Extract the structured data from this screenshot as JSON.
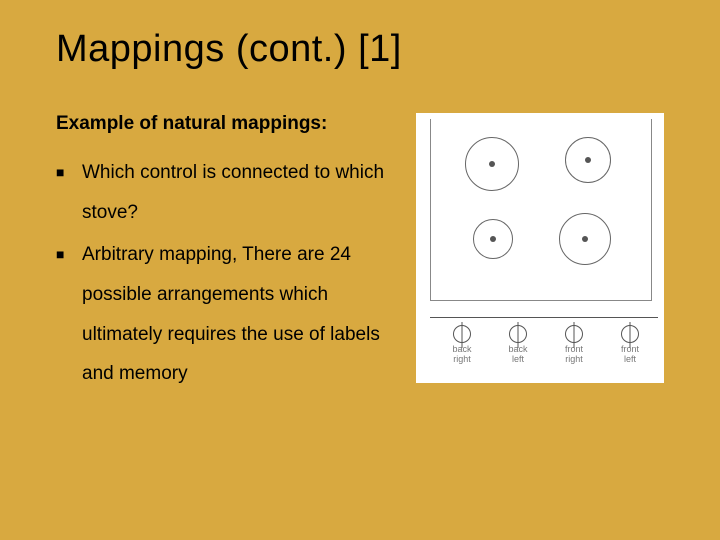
{
  "colors": {
    "background": "#d8a940",
    "text": "#000000",
    "figure_bg": "#ffffff",
    "stroke": "#666666",
    "label_muted": "#777777"
  },
  "typography": {
    "title_fontsize": 38,
    "subtitle_fontsize": 19,
    "body_fontsize": 19,
    "knob_label_fontsize": 9,
    "font_family": "Arial"
  },
  "title": "Mappings (cont.) [1]",
  "subtitle": "Example of natural mappings:",
  "bullets": [
    "Which control is connected to which stove?",
    "Arbitrary mapping, There are 24 possible arrangements which ultimately requires the use of labels and memory"
  ],
  "figure": {
    "type": "diagram",
    "description": "stove-top-with-four-burners-and-linear-knob-row",
    "burners": [
      {
        "pos": "top-left",
        "diameter": 54
      },
      {
        "pos": "top-right",
        "diameter": 46
      },
      {
        "pos": "bottom-left",
        "diameter": 40
      },
      {
        "pos": "bottom-right",
        "diameter": 52
      }
    ],
    "knobs": [
      {
        "label_line1": "back",
        "label_line2": "right"
      },
      {
        "label_line1": "back",
        "label_line2": "left"
      },
      {
        "label_line1": "front",
        "label_line2": "right"
      },
      {
        "label_line1": "front",
        "label_line2": "left"
      }
    ]
  }
}
